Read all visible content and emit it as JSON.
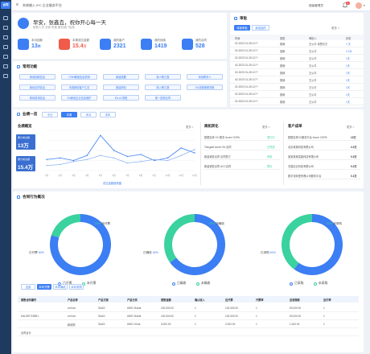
{
  "app": {
    "logo": "合同",
    "title": "系统输入 IPC 企业服务平台",
    "user": "超级管理员",
    "notify_count": "4",
    "caret": "▾"
  },
  "greeting": {
    "title": "早安，张鑫垚，祝你开心每一天",
    "subtitle": "销售人员 总部 所属 服务部门信息",
    "stats": [
      {
        "label": "本月回款",
        "value": "13",
        "unit": "件",
        "color": "#3c7ef3",
        "icon": "money-icon"
      },
      {
        "label": "本周成交金额",
        "value": "15.4",
        "unit": "万",
        "color": "#f05b4a",
        "icon": "deal-icon"
      },
      {
        "label": "我的客户",
        "value": "2321",
        "unit": "",
        "color": "#3c7ef3",
        "icon": "customer-icon"
      },
      {
        "label": "我的线索",
        "value": "1419",
        "unit": "",
        "color": "#3c7ef3",
        "icon": "clue-icon"
      },
      {
        "label": "我的合同",
        "value": "528",
        "unit": "",
        "color": "#3c7ef3",
        "icon": "contract-icon"
      }
    ]
  },
  "functions": {
    "title": "常用功能",
    "buttons": [
      "新增回款信息",
      "CRM基础信息说明",
      "新建需要",
      "新人职汇报",
      "添加联系人",
      "新增合同信息",
      "本周新增客户汇总",
      "新建商机",
      "新入职汇报",
      "OA流程管理流程",
      "新增费用信息",
      "EA新增企业信息维护",
      "EA-AJ流程",
      "新一批新合同"
    ]
  },
  "notice": {
    "title": "审批",
    "tabs": [
      "待我审批",
      "我发起的"
    ],
    "more": "更多 >",
    "headers": [
      "时间",
      "类型",
      "审批人",
      "状态"
    ],
    "rows": [
      [
        "02-2023 01-28 11??",
        "报销",
        "王公平 待签约方",
        "1 天"
      ],
      [
        "02-2023 01-28 11??",
        "回款",
        "王公平",
        "2.1天"
      ],
      [
        "02-2023 01-28 11??",
        "报销",
        "王公平",
        "1天"
      ],
      [
        "02-2023 01-28 11??",
        "报销",
        "王公平",
        "1天"
      ],
      [
        "02-2023 01-28 11??",
        "报销",
        "王公平",
        "1天"
      ],
      [
        "02-2023 01-28 11??",
        "报销",
        "王公平",
        "1天"
      ],
      [
        "02-2023 01-28 11??",
        "报销",
        "王公平",
        "1天"
      ],
      [
        "02-2023 01-28 11??",
        "报销",
        "王公平",
        "1天"
      ],
      [
        "02-2023 01-28 11??",
        "报销",
        "王公平",
        "1天"
      ]
    ]
  },
  "summary": {
    "title": "业绩一览",
    "segments": [
      "今日",
      "本周",
      "本月",
      "本年"
    ],
    "active_segment": 1,
    "perf": {
      "title": "业绩概览",
      "more": "更多 >",
      "metrics": [
        {
          "label": "累计成交额",
          "value": "13万"
        },
        {
          "label": "累计成交额",
          "value": "15.4万"
        }
      ],
      "caption": "成交金额趋势图"
    },
    "product": {
      "title": "商机转化",
      "more": "更多 >",
      "rows": [
        [
          "数据名称 XX 服务 Azure CDPA",
          "进行中"
        ],
        [
          "Tofugate Azure SA 合同",
          "已完成"
        ],
        [
          "新建销售合同 合同签订",
          "商务"
        ],
        [
          "新建销售合同 ACC合同",
          "签约"
        ]
      ]
    },
    "customer": {
      "title": "客户成单",
      "more": "更多 >",
      "rows": [
        [
          "数据名称XX服务平台 Azure CDPA",
          "13万"
        ],
        [
          "北京某某科技有限公司",
          "2.4万"
        ],
        [
          "某某某某智能科技有限公司",
          "0.3万"
        ],
        [
          "天猫实业科技有限公司",
          "0.2万"
        ],
        [
          "数字化转型有限公司服务平台",
          "0.1万"
        ]
      ]
    }
  },
  "chart_data": {
    "type": "line",
    "x": [
      "1月",
      "2月",
      "3月",
      "4月",
      "5月",
      "6月",
      "7月",
      "8月",
      "9月",
      "10月",
      "11月",
      "12月"
    ],
    "series": [
      {
        "name": "",
        "values": [
          22,
          25,
          20,
          30,
          70,
          40,
          28,
          32,
          20,
          25,
          45,
          35
        ]
      },
      {
        "name": "",
        "values": [
          10,
          12,
          18,
          22,
          30,
          25,
          15,
          18,
          22,
          20,
          30,
          42
        ]
      }
    ],
    "ylim": [
      0,
      80
    ],
    "grid": true
  },
  "contract": {
    "title": "合同行为概况",
    "donuts": [
      {
        "main_pct": "80%",
        "main_label": "已开票",
        "sub_pct": "20%",
        "sub_label": "未开票",
        "legend": [
          "已开票",
          "未开票"
        ],
        "main_value": 0.8
      },
      {
        "main_pct": "65%",
        "main_label": "已确收",
        "sub_pct": "35%",
        "sub_label": "待确收",
        "legend": [
          "已确收",
          "未确收"
        ],
        "main_value": 0.65
      },
      {
        "main_pct": "60%",
        "main_label": "已采购",
        "sub_pct": "40%",
        "sub_label": "未采购",
        "legend": [
          "已采购",
          "未采购"
        ],
        "main_value": 0.6
      }
    ],
    "colors": {
      "blue": "#3c7ef3",
      "green": "#3ad29f"
    },
    "tabs": [
      "全部",
      "本年开票",
      "本年确收",
      "本年采购"
    ],
    "active_tab": 1,
    "table": {
      "headers": [
        "销售合同编号",
        "产品名称",
        "产品方案",
        "产品分类",
        "销售金额",
        "确认收入",
        "应开票",
        "开票率",
        "应收账款",
        "应付率"
      ],
      "rows": [
        [
          "",
          "xxXxxx",
          "SAAS",
          "AWS Global",
          "100,000.00",
          "1",
          "100,000.00",
          "1",
          "50,000.00",
          "1"
        ],
        [
          "DAGWTIX9891",
          "xxXxxx",
          "SAAS",
          "AWS Global",
          "100,000.00",
          "1",
          "100,000.00",
          "1",
          "50,000.00",
          "1"
        ],
        [
          "",
          "新增额",
          "SAAS",
          "AWS China",
          "3,000.00",
          "1",
          "2,000.00",
          "1",
          "1,000.00",
          "1"
        ],
        [
          "合同合计",
          "",
          "",
          "",
          "",
          "",
          "",
          "",
          "",
          ""
        ]
      ]
    }
  }
}
